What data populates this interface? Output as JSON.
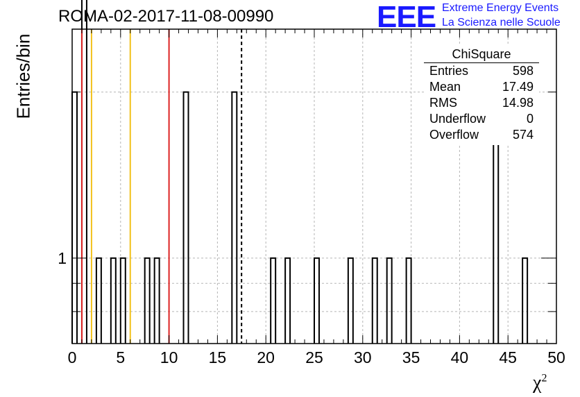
{
  "header": {
    "run_title": "ROMA-02-2017-11-08-00990",
    "logo_mark": "EEE",
    "logo_line1": "Extreme Energy Events",
    "logo_line2": "La Scienza nelle Scuole",
    "logo_color": "#1a1aff"
  },
  "axes": {
    "ylabel": "Entries/bin",
    "xlabel": "χ",
    "xlabel_sup": "2"
  },
  "stats_box": {
    "title": "ChiSquare",
    "rows": [
      {
        "label": "Entries",
        "value": "598"
      },
      {
        "label": "Mean",
        "value": "17.49"
      },
      {
        "label": "RMS",
        "value": "14.98"
      },
      {
        "label": "Underflow",
        "value": "0"
      },
      {
        "label": "Overflow",
        "value": "574"
      }
    ]
  },
  "chart_data": {
    "type": "bar",
    "title": "ROMA-02-2017-11-08-00990",
    "xlabel": "χ²",
    "ylabel": "Entries/bin",
    "xlim": [
      0,
      50
    ],
    "ylim_log": [
      0.7,
      2.6
    ],
    "yscale": "log",
    "grid": true,
    "bin_width": 0.5,
    "x_ticks": [
      0,
      5,
      10,
      15,
      20,
      25,
      30,
      35,
      40,
      45,
      50
    ],
    "y_tick_labels": [
      "1"
    ],
    "bins": [
      {
        "x": 0.0,
        "y": 2
      },
      {
        "x": 1.0,
        "y": 3
      },
      {
        "x": 2.5,
        "y": 1
      },
      {
        "x": 4.0,
        "y": 1
      },
      {
        "x": 5.0,
        "y": 1
      },
      {
        "x": 7.5,
        "y": 1
      },
      {
        "x": 8.5,
        "y": 1
      },
      {
        "x": 11.5,
        "y": 2
      },
      {
        "x": 16.5,
        "y": 2
      },
      {
        "x": 20.5,
        "y": 1
      },
      {
        "x": 22.0,
        "y": 1
      },
      {
        "x": 25.0,
        "y": 1
      },
      {
        "x": 28.5,
        "y": 1
      },
      {
        "x": 31.0,
        "y": 1
      },
      {
        "x": 32.5,
        "y": 1
      },
      {
        "x": 34.5,
        "y": 1
      },
      {
        "x": 43.5,
        "y": 2
      },
      {
        "x": 46.5,
        "y": 1
      }
    ],
    "vertical_lines": [
      {
        "x": 1.0,
        "color": "#dd2222",
        "style": "solid"
      },
      {
        "x": 2.0,
        "color": "#f2c21b",
        "style": "solid"
      },
      {
        "x": 6.0,
        "color": "#f2c21b",
        "style": "solid"
      },
      {
        "x": 10.0,
        "color": "#dd2222",
        "style": "solid"
      },
      {
        "x": 17.49,
        "color": "#000000",
        "style": "dashed"
      }
    ]
  }
}
